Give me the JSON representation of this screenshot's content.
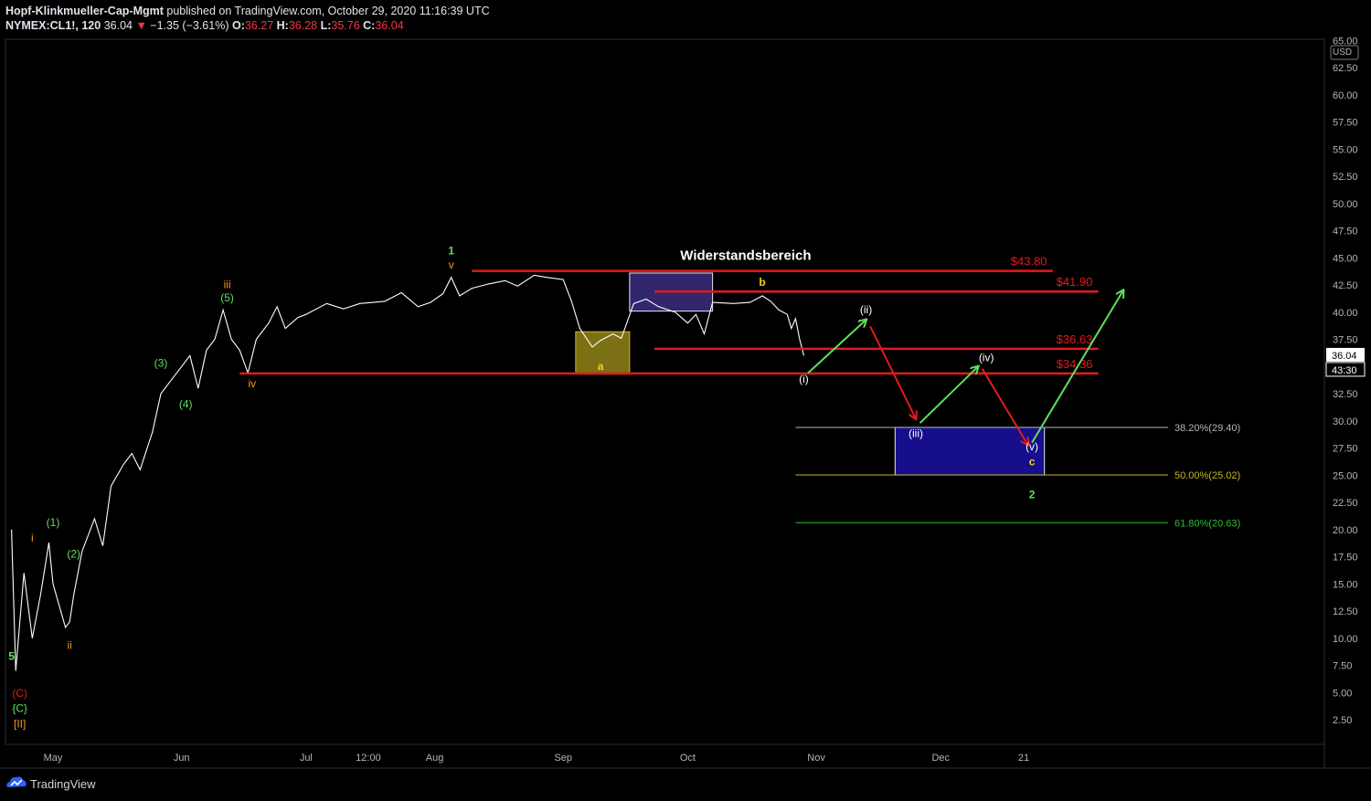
{
  "header": {
    "author": "Hopf-Klinkmueller-Cap-Mgmt",
    "published": " published on TradingView.com, October 29, 2020 11:16:39 UTC",
    "symbol": "NYMEX:CL1!, 120",
    "last": "36.04",
    "change_arrow": "▼",
    "change": "−1.35 (−3.61%)",
    "o_label": "O:",
    "o_val": "36.27",
    "h_label": "H:",
    "h_val": "36.28",
    "l_label": "L:",
    "l_val": "35.76",
    "c_label": "C:",
    "c_val": "36.04"
  },
  "footer": {
    "brand": "TradingView",
    "logo_icon": "tradingview-cloud-icon"
  },
  "colors": {
    "background": "#000000",
    "price_line": "#ffffff",
    "resistance": "#e31b1b",
    "wave_green": "#5ee05e",
    "wave_orange": "#f59a1e",
    "wave_red": "#e31b1b",
    "wave_yellow": "#f2d21b",
    "box_purple": "#3b2d80",
    "box_navy": "#1a0f9a",
    "box_olive": "#8a7c16",
    "fib_382": "#b2b5be",
    "fib_500": "#c7b81c",
    "fib_618": "#2fbf2f"
  },
  "chart_data": {
    "type": "line",
    "title": "",
    "xlabel": "",
    "ylabel": "",
    "currency": "USD",
    "last_price_label": "36.04",
    "countdown_label": "43:30",
    "ylim": [
      0,
      65
    ],
    "y_ticks": [
      "2.50",
      "5.00",
      "7.50",
      "10.00",
      "12.50",
      "15.00",
      "17.50",
      "20.00",
      "22.50",
      "25.00",
      "27.50",
      "30.00",
      "32.50",
      "35.00",
      "37.50",
      "40.00",
      "42.50",
      "45.00",
      "47.50",
      "50.00",
      "52.50",
      "55.00",
      "57.50",
      "60.00",
      "62.50",
      "65.00"
    ],
    "x_ticks": [
      {
        "label": "May",
        "d": "2020-05-01"
      },
      {
        "label": "Jun",
        "d": "2020-06-01"
      },
      {
        "label": "Jul",
        "d": "2020-07-01"
      },
      {
        "label": "12:00",
        "d": "2020-07-16"
      },
      {
        "label": "Aug",
        "d": "2020-08-01"
      },
      {
        "label": "Sep",
        "d": "2020-09-01"
      },
      {
        "label": "Oct",
        "d": "2020-10-01"
      },
      {
        "label": "Nov",
        "d": "2020-11-01"
      },
      {
        "label": "Dec",
        "d": "2020-12-01"
      },
      {
        "label": "21",
        "d": "2020-12-21"
      }
    ],
    "series": [
      {
        "values": [
          [
            "2020-04-21",
            20.0
          ],
          [
            "2020-04-22",
            7.0
          ],
          [
            "2020-04-24",
            16.0
          ],
          [
            "2020-04-26",
            10.0
          ],
          [
            "2020-04-28",
            14.0
          ],
          [
            "2020-04-30",
            18.8
          ],
          [
            "2020-05-01",
            15.0
          ],
          [
            "2020-05-04",
            11.0
          ],
          [
            "2020-05-05",
            11.5
          ],
          [
            "2020-05-06",
            14.0
          ],
          [
            "2020-05-08",
            18.0
          ],
          [
            "2020-05-11",
            21.0
          ],
          [
            "2020-05-13",
            18.5
          ],
          [
            "2020-05-15",
            24.0
          ],
          [
            "2020-05-18",
            26.0
          ],
          [
            "2020-05-20",
            27.0
          ],
          [
            "2020-05-22",
            25.5
          ],
          [
            "2020-05-25",
            29.0
          ],
          [
            "2020-05-27",
            32.5
          ],
          [
            "2020-05-29",
            33.5
          ],
          [
            "2020-06-01",
            35.0
          ],
          [
            "2020-06-03",
            36.0
          ],
          [
            "2020-06-05",
            33.0
          ],
          [
            "2020-06-07",
            36.5
          ],
          [
            "2020-06-09",
            37.5
          ],
          [
            "2020-06-11",
            40.2
          ],
          [
            "2020-06-13",
            37.5
          ],
          [
            "2020-06-15",
            36.5
          ],
          [
            "2020-06-17",
            34.4
          ],
          [
            "2020-06-19",
            37.5
          ],
          [
            "2020-06-22",
            39.0
          ],
          [
            "2020-06-24",
            40.5
          ],
          [
            "2020-06-26",
            38.5
          ],
          [
            "2020-06-29",
            39.5
          ],
          [
            "2020-07-01",
            39.8
          ],
          [
            "2020-07-06",
            40.8
          ],
          [
            "2020-07-10",
            40.3
          ],
          [
            "2020-07-14",
            40.8
          ],
          [
            "2020-07-20",
            41.0
          ],
          [
            "2020-07-24",
            41.8
          ],
          [
            "2020-07-28",
            40.5
          ],
          [
            "2020-07-31",
            40.9
          ],
          [
            "2020-08-03",
            41.7
          ],
          [
            "2020-08-05",
            43.2
          ],
          [
            "2020-08-07",
            41.5
          ],
          [
            "2020-08-10",
            42.2
          ],
          [
            "2020-08-14",
            42.6
          ],
          [
            "2020-08-18",
            42.9
          ],
          [
            "2020-08-21",
            42.4
          ],
          [
            "2020-08-25",
            43.4
          ],
          [
            "2020-08-28",
            43.2
          ],
          [
            "2020-09-01",
            43.0
          ],
          [
            "2020-09-03",
            41.0
          ],
          [
            "2020-09-05",
            38.5
          ],
          [
            "2020-09-08",
            36.8
          ],
          [
            "2020-09-10",
            37.4
          ],
          [
            "2020-09-13",
            38.0
          ],
          [
            "2020-09-15",
            37.6
          ],
          [
            "2020-09-18",
            40.8
          ],
          [
            "2020-09-21",
            41.2
          ],
          [
            "2020-09-24",
            40.5
          ],
          [
            "2020-09-28",
            40.0
          ],
          [
            "2020-10-01",
            39.0
          ],
          [
            "2020-10-03",
            39.8
          ],
          [
            "2020-10-05",
            38.0
          ],
          [
            "2020-10-07",
            40.9
          ],
          [
            "2020-10-12",
            40.8
          ],
          [
            "2020-10-16",
            40.9
          ],
          [
            "2020-10-19",
            41.5
          ],
          [
            "2020-10-21",
            41.0
          ],
          [
            "2020-10-23",
            40.2
          ],
          [
            "2020-10-25",
            39.8
          ],
          [
            "2020-10-26",
            38.5
          ],
          [
            "2020-10-27",
            39.4
          ],
          [
            "2020-10-28",
            37.5
          ],
          [
            "2020-10-29",
            36.0
          ]
        ]
      }
    ],
    "box_labels": {
      "a": "a",
      "b": "b"
    },
    "resistance_title": "Widerstandsbereich",
    "resistance_levels": [
      {
        "label": "$43.80",
        "price": 43.8,
        "from": "2020-08-10",
        "to": "2020-12-28"
      },
      {
        "label": "$41.90",
        "price": 41.9,
        "from": "2020-09-23",
        "to": "2021-01-08"
      },
      {
        "label": "$36.63",
        "price": 36.63,
        "from": "2020-09-23",
        "to": "2021-01-08"
      },
      {
        "label": "$34.36",
        "price": 34.36,
        "from": "2020-06-15",
        "to": "2021-01-08"
      }
    ],
    "fib_levels": [
      {
        "label": "38.20%(29.40)",
        "price": 29.4,
        "from": "2020-10-27",
        "to": "2021-01-20"
      },
      {
        "label": "50.00%(25.02)",
        "price": 25.02,
        "from": "2020-10-27",
        "to": "2021-01-20"
      },
      {
        "label": "61.80%(20.63)",
        "price": 20.63,
        "from": "2020-10-27",
        "to": "2021-01-20"
      }
    ],
    "boxes": [
      {
        "name": "box-a",
        "from": "2020-09-04",
        "to": "2020-09-17",
        "top": 38.2,
        "bottom": 34.3
      },
      {
        "name": "box-b",
        "from": "2020-09-17",
        "to": "2020-10-07",
        "top": 43.6,
        "bottom": 40.1
      },
      {
        "name": "box-target",
        "from": "2020-11-20",
        "to": "2020-12-26",
        "top": 29.4,
        "bottom": 25.02
      }
    ],
    "wave_labels": [
      {
        "text": "5",
        "d": "2020-04-21",
        "p": 8.0,
        "color": "wave_green",
        "bold": true
      },
      {
        "text": "(C)",
        "d": "2020-04-23",
        "p": 4.6,
        "color": "wave_red",
        "bold": false
      },
      {
        "text": "{C}",
        "d": "2020-04-23",
        "p": 3.2,
        "color": "wave_green",
        "bold": false
      },
      {
        "text": "[II]",
        "d": "2020-04-23",
        "p": 1.8,
        "color": "wave_orange",
        "bold": false
      },
      {
        "text": "i",
        "d": "2020-04-26",
        "p": 18.9,
        "color": "wave_orange",
        "bold": false
      },
      {
        "text": "ii",
        "d": "2020-05-05",
        "p": 9.0,
        "color": "wave_orange",
        "bold": false
      },
      {
        "text": "(1)",
        "d": "2020-05-01",
        "p": 20.3,
        "color": "wave_green",
        "bold": false
      },
      {
        "text": "(2)",
        "d": "2020-05-06",
        "p": 17.4,
        "color": "wave_green",
        "bold": false
      },
      {
        "text": "(3)",
        "d": "2020-05-27",
        "p": 35.0,
        "color": "wave_green",
        "bold": false
      },
      {
        "text": "(4)",
        "d": "2020-06-02",
        "p": 31.2,
        "color": "wave_green",
        "bold": false
      },
      {
        "text": "iii",
        "d": "2020-06-12",
        "p": 42.2,
        "color": "wave_orange",
        "bold": false
      },
      {
        "text": "(5)",
        "d": "2020-06-12",
        "p": 41.0,
        "color": "wave_green",
        "bold": false
      },
      {
        "text": "iv",
        "d": "2020-06-18",
        "p": 33.1,
        "color": "wave_orange",
        "bold": false
      },
      {
        "text": "1",
        "d": "2020-08-05",
        "p": 45.3,
        "color": "wave_green",
        "bold": true
      },
      {
        "text": "v",
        "d": "2020-08-05",
        "p": 44.0,
        "color": "wave_orange",
        "bold": false
      },
      {
        "text": "(i)",
        "d": "2020-10-29",
        "p": 33.5,
        "color": "price_line",
        "bold": false
      },
      {
        "text": "(ii)",
        "d": "2020-11-13",
        "p": 39.9,
        "color": "price_line",
        "bold": false
      },
      {
        "text": "(iii)",
        "d": "2020-11-25",
        "p": 28.5,
        "color": "price_line",
        "bold": false
      },
      {
        "text": "(iv)",
        "d": "2020-12-12",
        "p": 35.5,
        "color": "price_line",
        "bold": false
      },
      {
        "text": "(v)",
        "d": "2020-12-23",
        "p": 27.3,
        "color": "price_line",
        "bold": false
      },
      {
        "text": "c",
        "d": "2020-12-23",
        "p": 25.9,
        "color": "wave_yellow",
        "bold": true
      },
      {
        "text": "2",
        "d": "2020-12-23",
        "p": 22.9,
        "color": "wave_green",
        "bold": true
      }
    ],
    "projection_arrows": [
      {
        "from": [
          "2020-10-30",
          34.4
        ],
        "to": [
          "2020-11-13",
          39.3
        ],
        "color": "wave_green"
      },
      {
        "from": [
          "2020-11-14",
          38.7
        ],
        "to": [
          "2020-11-25",
          30.2
        ],
        "color": "wave_red"
      },
      {
        "from": [
          "2020-11-26",
          29.8
        ],
        "to": [
          "2020-12-10",
          35.0
        ],
        "color": "wave_green"
      },
      {
        "from": [
          "2020-12-11",
          34.8
        ],
        "to": [
          "2020-12-22",
          27.8
        ],
        "color": "wave_red"
      },
      {
        "from": [
          "2020-12-23",
          28.0
        ],
        "to": [
          "2021-01-14",
          42.0
        ],
        "color": "wave_green"
      }
    ]
  }
}
